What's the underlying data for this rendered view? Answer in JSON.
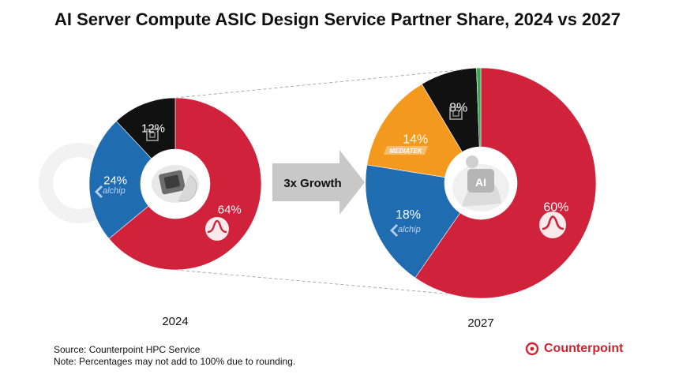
{
  "title": "AI Server Compute ASIC Design Service Partner Share, 2024 vs 2027",
  "arrow_label": "3x Growth",
  "source": "Source: Counterpoint HPC Service",
  "note": "Note: Percentages may not add to 100% due to rounding.",
  "brand": "Counterpoint",
  "colors": {
    "red": "#d0223a",
    "blue": "#1f6cb0",
    "black": "#111111",
    "orange": "#f39a1e",
    "green": "#3aa655",
    "arrow": "#c8c8c8"
  },
  "chart_data": [
    {
      "type": "pie",
      "style": "donut",
      "label": "2024",
      "slices": [
        {
          "name": "red-logo",
          "value": 64,
          "label": "64%",
          "color": "#d0223a",
          "icon": "broadcom-logo"
        },
        {
          "name": "alchip",
          "value": 24,
          "label": "24%",
          "color": "#1f6cb0",
          "icon": "alchip-logo"
        },
        {
          "name": "black-logo",
          "value": 12,
          "label": "12%",
          "color": "#111111",
          "icon": "chip-logo"
        }
      ],
      "center_icon": "chip-in-hand"
    },
    {
      "type": "pie",
      "style": "donut",
      "label": "2027",
      "slices": [
        {
          "name": "red-logo",
          "value": 60,
          "label": "60%",
          "color": "#d0223a",
          "icon": "broadcom-logo"
        },
        {
          "name": "alchip",
          "value": 18,
          "label": "18%",
          "color": "#1f6cb0",
          "icon": "alchip-logo"
        },
        {
          "name": "MEDIATEK",
          "value": 14,
          "label": "14%",
          "color": "#f39a1e",
          "icon": "mediatek-logo"
        },
        {
          "name": "black-logo",
          "value": 8,
          "label": "8%",
          "color": "#111111",
          "icon": "chip-logo"
        },
        {
          "name": "green",
          "value": 0.6,
          "label": "",
          "color": "#3aa655",
          "icon": ""
        }
      ],
      "center_icon": "ai-robot"
    }
  ]
}
